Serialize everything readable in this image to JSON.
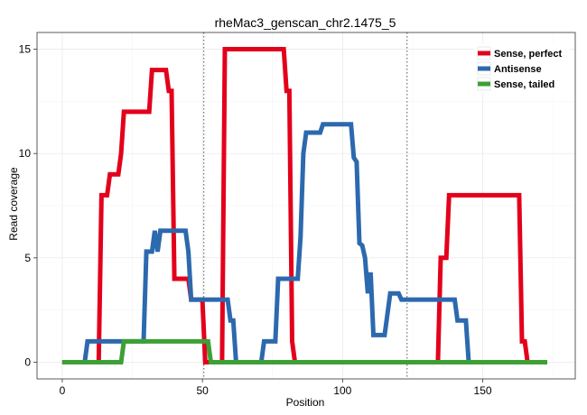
{
  "chart_data": {
    "type": "line",
    "title": "rheMac3_genscan_chr2.1475_5",
    "xlabel": "Position",
    "ylabel": "Read coverage",
    "xlim": [
      -9,
      183
    ],
    "ylim": [
      -0.8,
      15.8
    ],
    "xticks": [
      0,
      50,
      100,
      150
    ],
    "yticks": [
      0,
      5,
      10,
      15
    ],
    "grid": true,
    "legend_position": "top-right",
    "vlines": [
      50.5,
      123
    ],
    "series": [
      {
        "name": "Sense, perfect",
        "color": "#E3001B",
        "points": [
          [
            0,
            0
          ],
          [
            13,
            0
          ],
          [
            14,
            8
          ],
          [
            16,
            8
          ],
          [
            17,
            9
          ],
          [
            20,
            9
          ],
          [
            21,
            10
          ],
          [
            22,
            12
          ],
          [
            31,
            12
          ],
          [
            32,
            14
          ],
          [
            37,
            14
          ],
          [
            38,
            13
          ],
          [
            39,
            13
          ],
          [
            40,
            4
          ],
          [
            45,
            4
          ],
          [
            46,
            3
          ],
          [
            50,
            3
          ],
          [
            51,
            0
          ],
          [
            57,
            0
          ],
          [
            58,
            15
          ],
          [
            79,
            15
          ],
          [
            80,
            13
          ],
          [
            81,
            13
          ],
          [
            82,
            1
          ],
          [
            83,
            0
          ],
          [
            134,
            0
          ],
          [
            135,
            5
          ],
          [
            137,
            5
          ],
          [
            138,
            8
          ],
          [
            163,
            8
          ],
          [
            164,
            1
          ],
          [
            165,
            1
          ],
          [
            166,
            0
          ],
          [
            173,
            0
          ]
        ]
      },
      {
        "name": "Antisense",
        "color": "#2C69AE",
        "points": [
          [
            0,
            0
          ],
          [
            8,
            0
          ],
          [
            9,
            1
          ],
          [
            29,
            1
          ],
          [
            30,
            5.3
          ],
          [
            32,
            5.3
          ],
          [
            33,
            6.3
          ],
          [
            34,
            5.3
          ],
          [
            35,
            6.3
          ],
          [
            44,
            6.3
          ],
          [
            45,
            5.3
          ],
          [
            46,
            3
          ],
          [
            59,
            3
          ],
          [
            60,
            2
          ],
          [
            61,
            2
          ],
          [
            62,
            0
          ],
          [
            71,
            0
          ],
          [
            72,
            1
          ],
          [
            76,
            1
          ],
          [
            77,
            4
          ],
          [
            84,
            4
          ],
          [
            85,
            6
          ],
          [
            86,
            10
          ],
          [
            87,
            11
          ],
          [
            92,
            11
          ],
          [
            93,
            11.4
          ],
          [
            103,
            11.4
          ],
          [
            104,
            9.8
          ],
          [
            105,
            9.6
          ],
          [
            106,
            5.7
          ],
          [
            107,
            5.6
          ],
          [
            108,
            5
          ],
          [
            109,
            3.3
          ],
          [
            110,
            4.3
          ],
          [
            111,
            1.3
          ],
          [
            115,
            1.3
          ],
          [
            117,
            3.3
          ],
          [
            120,
            3.3
          ],
          [
            121,
            3
          ],
          [
            140,
            3
          ],
          [
            141,
            2
          ],
          [
            144,
            2
          ],
          [
            145,
            0
          ],
          [
            173,
            0
          ]
        ]
      },
      {
        "name": "Sense, tailed",
        "color": "#3DA036",
        "points": [
          [
            0,
            0
          ],
          [
            21,
            0
          ],
          [
            22,
            1
          ],
          [
            52,
            1
          ],
          [
            53,
            0
          ],
          [
            173,
            0
          ]
        ]
      }
    ]
  }
}
